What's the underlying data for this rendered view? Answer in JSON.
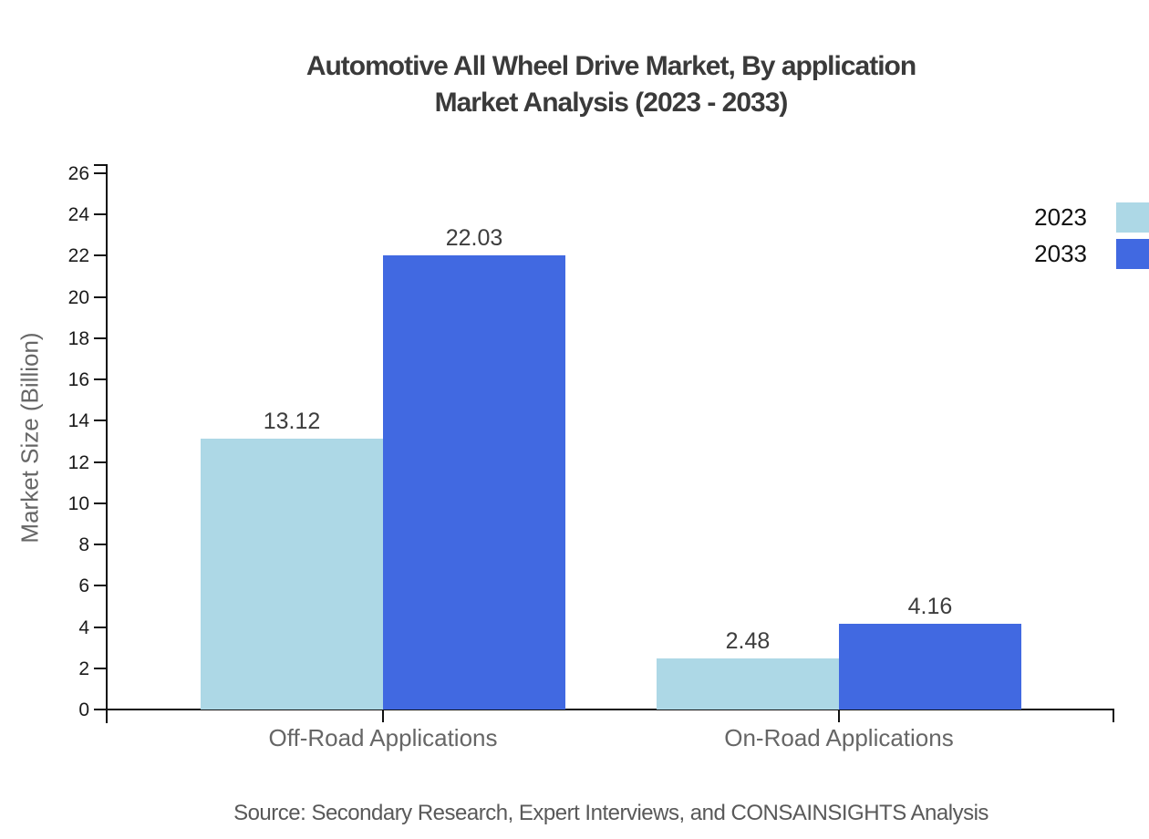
{
  "title": {
    "line1": "Automotive All Wheel Drive Market, By application",
    "line2": "Market Analysis (2023 - 2033)"
  },
  "axes": {
    "y_title": "Market Size (Billion)"
  },
  "legend": {
    "items": [
      {
        "label": "2023",
        "color": "#add8e6"
      },
      {
        "label": "2033",
        "color": "#4169e1"
      }
    ]
  },
  "source": "Source: Secondary Research, Expert Interviews, and CONSAINSIGHTS Analysis",
  "colors": {
    "series_2023": "#add8e6",
    "series_2033": "#4169e1",
    "axis": "#111111",
    "title_text": "#3a3a3a",
    "muted_text": "#666666",
    "value_text": "#3d3d3d",
    "source_text": "#595959"
  },
  "chart_data": {
    "type": "bar",
    "title": "Automotive All Wheel Drive Market, By application Market Analysis (2023 - 2033)",
    "categories": [
      "Off-Road Applications",
      "On-Road Applications"
    ],
    "series": [
      {
        "name": "2023",
        "color": "#add8e6",
        "values": [
          13.12,
          2.48
        ]
      },
      {
        "name": "2033",
        "color": "#4169e1",
        "values": [
          22.03,
          4.16
        ]
      }
    ],
    "value_labels": [
      [
        "13.12",
        "2.48"
      ],
      [
        "22.03",
        "4.16"
      ]
    ],
    "xlabel": "",
    "ylabel": "Market Size (Billion)",
    "ylim": [
      0,
      26
    ],
    "ytick_step": 2,
    "yticks": [
      0,
      2,
      4,
      6,
      8,
      10,
      12,
      14,
      16,
      18,
      20,
      22,
      24,
      26
    ],
    "grid": false,
    "legend_position": "top-right"
  }
}
